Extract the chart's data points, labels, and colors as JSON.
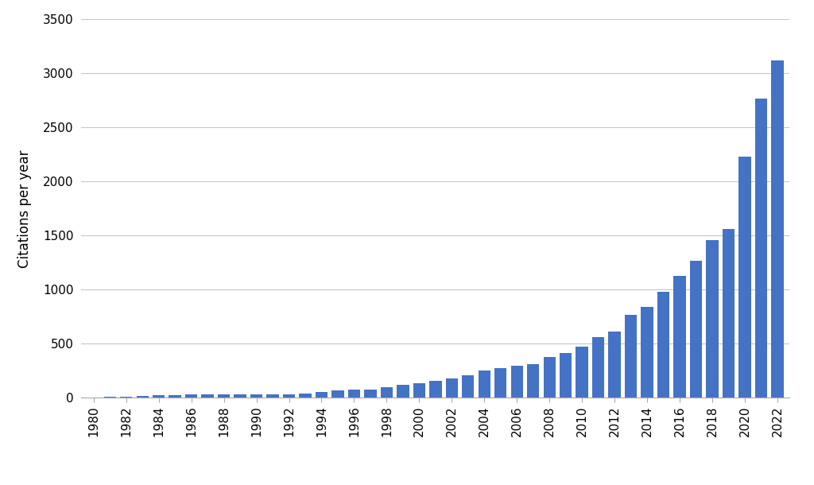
{
  "years": [
    1980,
    1981,
    1982,
    1983,
    1984,
    1985,
    1986,
    1987,
    1988,
    1989,
    1990,
    1991,
    1992,
    1993,
    1994,
    1995,
    1996,
    1997,
    1998,
    1999,
    2000,
    2001,
    2002,
    2003,
    2004,
    2005,
    2006,
    2007,
    2008,
    2009,
    2010,
    2011,
    2012,
    2013,
    2014,
    2015,
    2016,
    2017,
    2018,
    2019,
    2020,
    2021,
    2022
  ],
  "values": [
    5,
    8,
    10,
    15,
    25,
    25,
    30,
    28,
    30,
    30,
    28,
    30,
    32,
    35,
    55,
    65,
    75,
    75,
    95,
    120,
    135,
    155,
    175,
    210,
    255,
    275,
    295,
    310,
    380,
    415,
    470,
    560,
    610,
    770,
    840,
    980,
    1130,
    1270,
    1455,
    1560,
    2230,
    2770,
    3120
  ],
  "bar_color": "#4472c4",
  "ylabel": "Citations per year",
  "ylim": [
    0,
    3500
  ],
  "yticks": [
    0,
    500,
    1000,
    1500,
    2000,
    2500,
    3000,
    3500
  ],
  "xtick_step": 2,
  "background_color": "#ffffff",
  "grid_color": "#c8c8c8",
  "figure_bg": "#ffffff",
  "tick_fontsize": 11,
  "ylabel_fontsize": 12
}
